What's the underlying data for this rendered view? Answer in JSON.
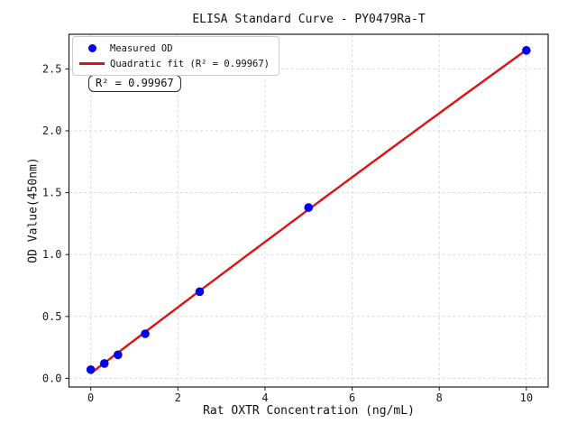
{
  "chart_data": {
    "type": "scatter",
    "title": "ELISA Standard Curve - PY0479Ra-T",
    "xlabel": "Rat OXTR Concentration (ng/mL)",
    "ylabel": "OD Value(450nm)",
    "xlim": [
      -0.5,
      10.5
    ],
    "ylim": [
      -0.07,
      2.78
    ],
    "xticks": [
      0,
      2,
      4,
      6,
      8,
      10
    ],
    "xtick_labels": [
      "0",
      "2",
      "4",
      "6",
      "8",
      "10"
    ],
    "yticks": [
      0.0,
      0.5,
      1.0,
      1.5,
      2.0,
      2.5
    ],
    "ytick_labels": [
      "0.0",
      "0.5",
      "1.0",
      "1.5",
      "2.0",
      "2.5"
    ],
    "grid": true,
    "series": [
      {
        "name": "Measured OD",
        "type": "scatter",
        "x": [
          0,
          0.3125,
          0.625,
          1.25,
          2.5,
          5,
          10
        ],
        "y": [
          0.07,
          0.12,
          0.19,
          0.36,
          0.7,
          1.38,
          2.65
        ]
      },
      {
        "name": "Quadratic fit",
        "type": "line",
        "fit": "quadratic",
        "fit_x_range": [
          0,
          10
        ],
        "r_squared": 0.99967
      }
    ],
    "legend": {
      "position": "upper-left",
      "entries": [
        {
          "label": "Measured OD",
          "marker": "dot"
        },
        {
          "label": "Quadratic fit (R² = 0.99967)",
          "marker": "line"
        }
      ]
    },
    "annotation": "R² = 0.99967",
    "colors": {
      "marker": "#0000ee",
      "fit_line": "#e01010",
      "grid": "#d9d9d9",
      "axis": "#1a1a1a",
      "legend_border": "#cccccc"
    }
  }
}
